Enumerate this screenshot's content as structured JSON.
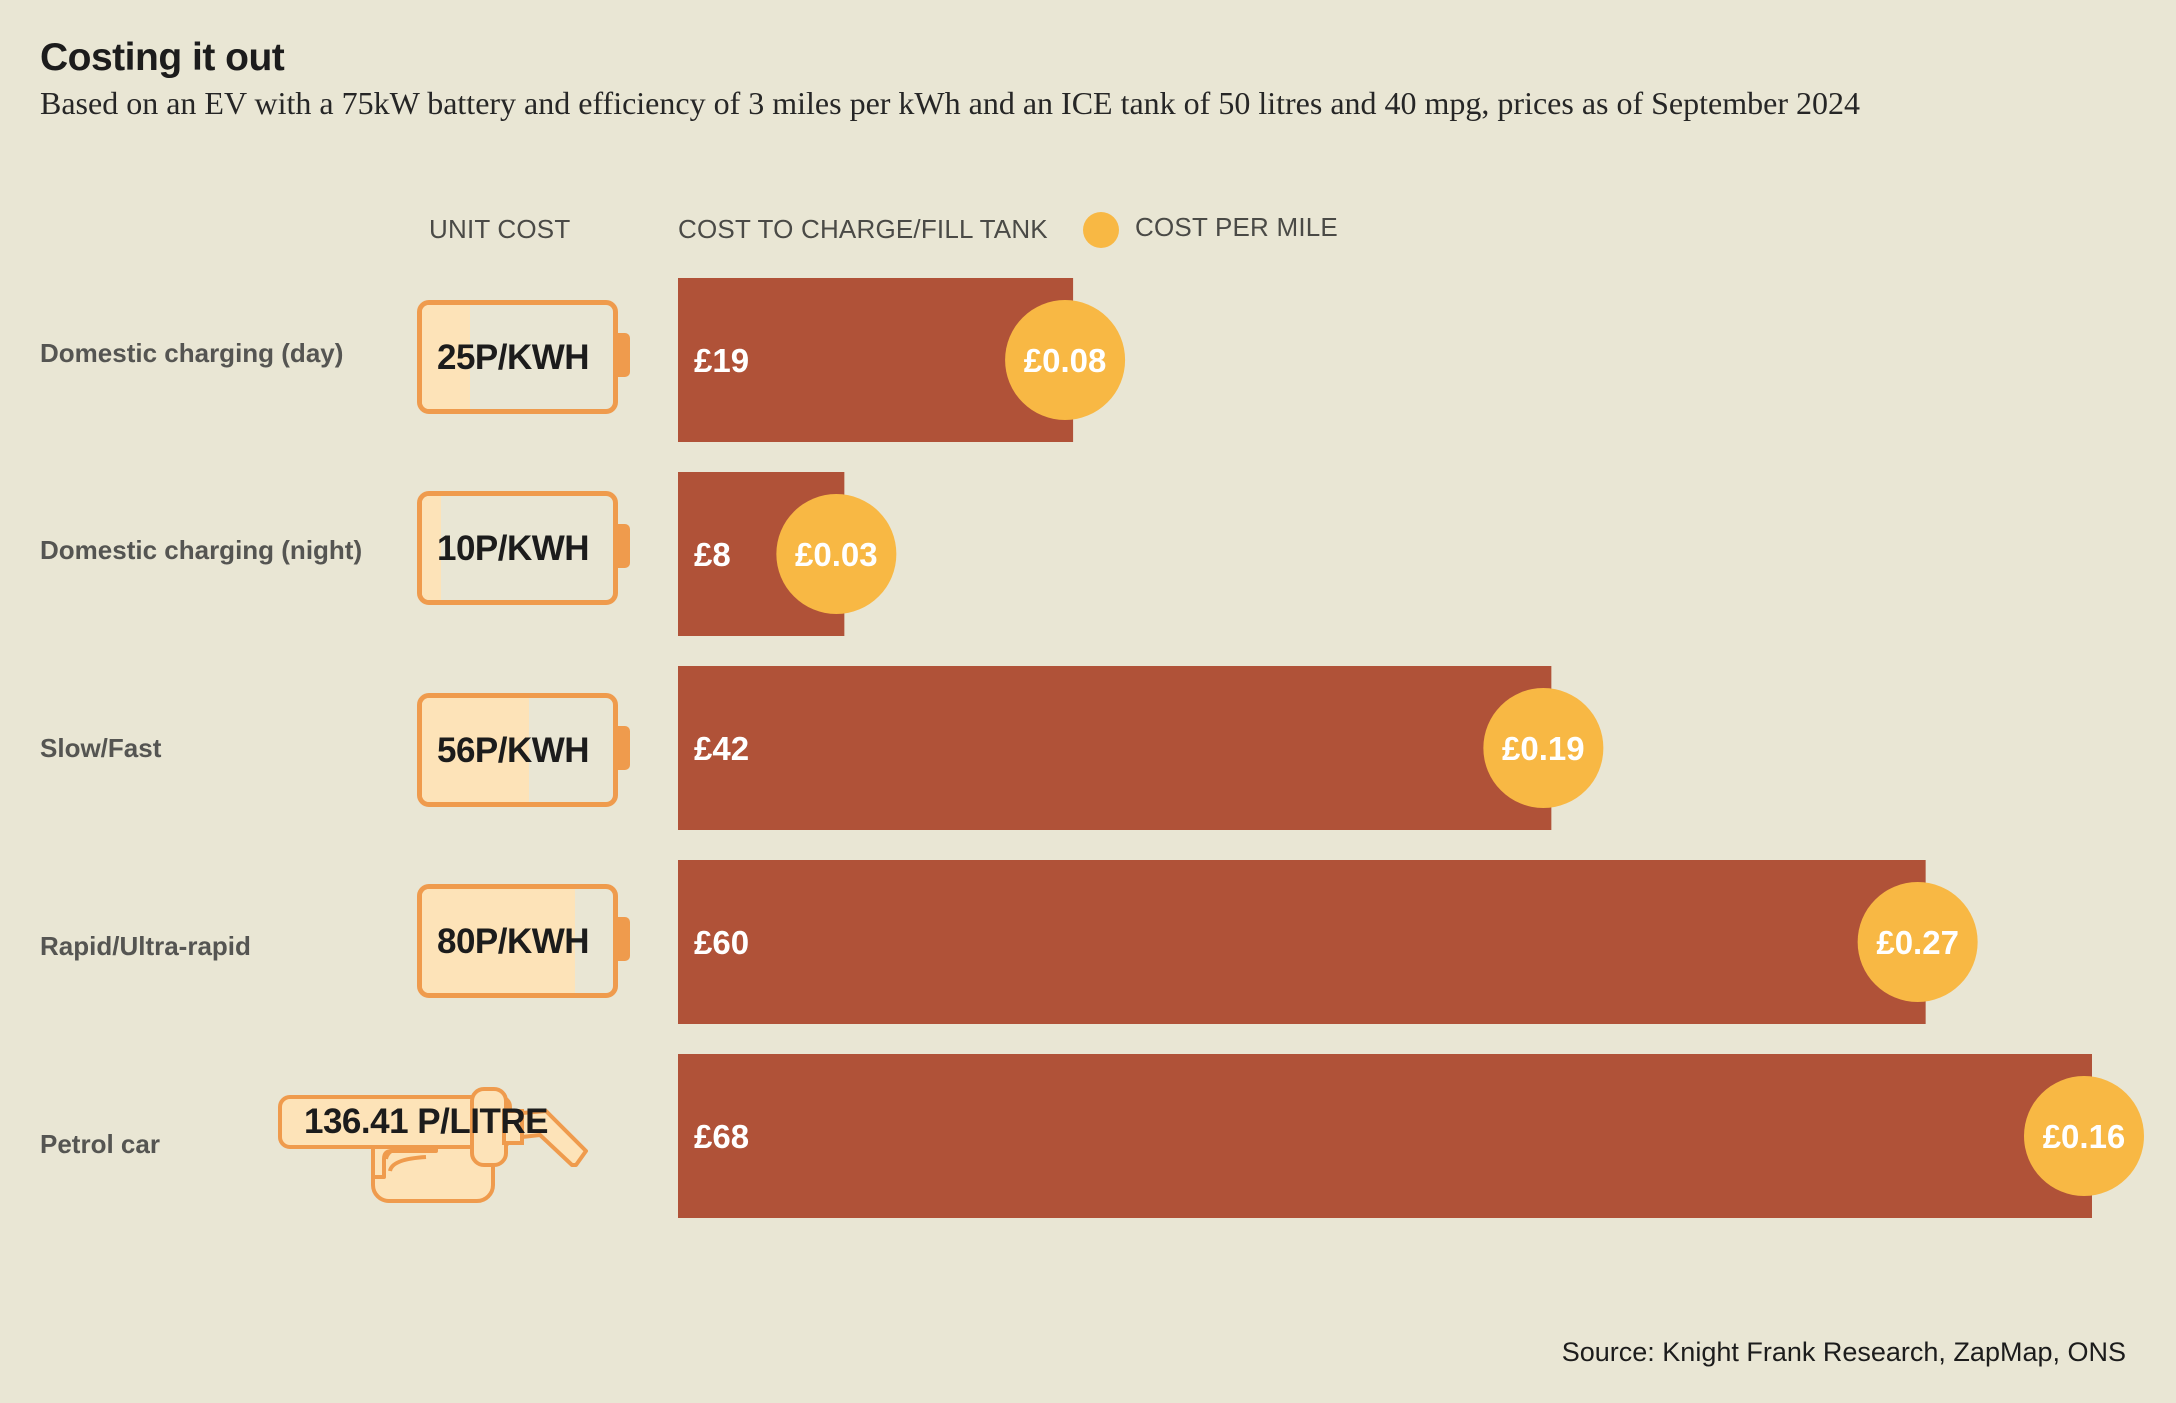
{
  "title": "Costing it out",
  "subtitle": "Based on an EV with a 75kW battery and efficiency of 3 miles per kWh and an ICE tank of 50 litres and 40 mpg, prices as of September 2024",
  "headers": {
    "unit_cost": "UNIT COST",
    "cost_to_charge": "COST TO CHARGE/FILL TANK",
    "cost_per_mile": "COST PER MILE"
  },
  "source": "Source: Knight Frank Research, ZapMap, ONS",
  "colors": {
    "bar": "#b05238",
    "dot": "#f8b844",
    "background": "#e9e6d4",
    "icon_stroke": "#ef9b4d",
    "icon_fill": "#fde3b8"
  },
  "rows": [
    {
      "label": "Domestic charging (day)",
      "unit_cost": "25P/KWH",
      "icon": "battery-icon",
      "battery_level": 0.25
    },
    {
      "label": "Domestic charging (night)",
      "unit_cost": "10P/KWH",
      "icon": "battery-icon",
      "battery_level": 0.1
    },
    {
      "label": "Slow/Fast",
      "unit_cost": "56P/KWH",
      "icon": "battery-icon",
      "battery_level": 0.56
    },
    {
      "label": "Rapid/Ultra-rapid",
      "unit_cost": "80P/KWH",
      "icon": "battery-icon",
      "battery_level": 0.8
    },
    {
      "label": "Petrol car",
      "unit_cost": "136.41 P/LITRE",
      "icon": "fuel-pump-icon"
    }
  ],
  "chart_data": {
    "type": "bar",
    "orientation": "horizontal",
    "categories": [
      "Domestic charging (day)",
      "Domestic charging (night)",
      "Slow/Fast",
      "Rapid/Ultra-rapid",
      "Petrol car"
    ],
    "series": [
      {
        "name": "COST TO CHARGE/FILL TANK",
        "values": [
          19,
          8,
          42,
          60,
          68
        ],
        "labels": [
          "£19",
          "£8",
          "£42",
          "£60",
          "£68"
        ]
      },
      {
        "name": "COST PER MILE",
        "values": [
          0.08,
          0.03,
          0.19,
          0.27,
          0.16
        ],
        "labels": [
          "£0.08",
          "£0.03",
          "£0.19",
          "£0.27",
          "£0.16"
        ]
      }
    ],
    "title": "Costing it out",
    "xlabel": "",
    "ylabel": "",
    "xlim": [
      0,
      68
    ],
    "grid": false,
    "legend": "top"
  }
}
